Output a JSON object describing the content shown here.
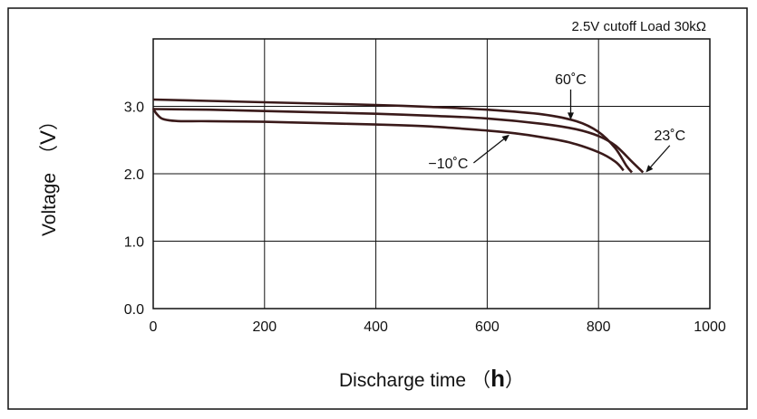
{
  "chart_data": {
    "type": "line",
    "legend_text": "2.5V cutoff  Load 30kΩ",
    "xlabel": {
      "text": "Discharge time",
      "paren_open": "（",
      "unit": "h",
      "paren_close": "）"
    },
    "ylabel": {
      "text": "Voltage",
      "paren_open": "（",
      "unit": "V",
      "paren_close": "）"
    },
    "xlim": [
      0,
      1000
    ],
    "ylim": [
      0,
      4.0
    ],
    "x_ticks": [
      0,
      200,
      400,
      600,
      800,
      1000
    ],
    "x_tick_labels": [
      "0",
      "200",
      "400",
      "600",
      "800",
      "1000"
    ],
    "y_ticks": [
      0,
      1,
      2,
      3
    ],
    "y_tick_labels": [
      "0.0",
      "1.0",
      "2.0",
      "3.0"
    ],
    "grid": true,
    "line_color": "#3a1a1a",
    "series": [
      {
        "name": "60˚C",
        "x": [
          0,
          100,
          200,
          300,
          400,
          500,
          600,
          700,
          760,
          800,
          830,
          850,
          860
        ],
        "y": [
          3.1,
          3.08,
          3.06,
          3.04,
          3.02,
          2.99,
          2.95,
          2.88,
          2.78,
          2.62,
          2.38,
          2.12,
          2.02
        ]
      },
      {
        "name": "23˚C",
        "x": [
          0,
          100,
          200,
          300,
          400,
          500,
          600,
          700,
          760,
          800,
          830,
          860,
          880
        ],
        "y": [
          2.96,
          2.95,
          2.93,
          2.91,
          2.89,
          2.86,
          2.82,
          2.74,
          2.66,
          2.56,
          2.42,
          2.18,
          2.02
        ]
      },
      {
        "name": "−10˚C",
        "x": [
          0,
          5,
          15,
          30,
          50,
          100,
          200,
          300,
          400,
          500,
          600,
          650,
          700,
          750,
          800,
          830,
          845
        ],
        "y": [
          2.97,
          2.9,
          2.82,
          2.79,
          2.78,
          2.78,
          2.77,
          2.75,
          2.73,
          2.7,
          2.64,
          2.6,
          2.54,
          2.46,
          2.32,
          2.18,
          2.05
        ]
      }
    ],
    "annotations": [
      {
        "text": "60˚C",
        "series": 0,
        "label_x": 750,
        "label_y": 3.33,
        "point_x": 750,
        "point_y": 2.8
      },
      {
        "text": "23˚C",
        "series": 1,
        "label_x": 928,
        "label_y": 2.5,
        "point_x": 885,
        "point_y": 2.02
      },
      {
        "text": "−10˚C",
        "series": 2,
        "label_x": 530,
        "label_y": 2.08,
        "point_x": 640,
        "point_y": 2.58
      }
    ]
  }
}
